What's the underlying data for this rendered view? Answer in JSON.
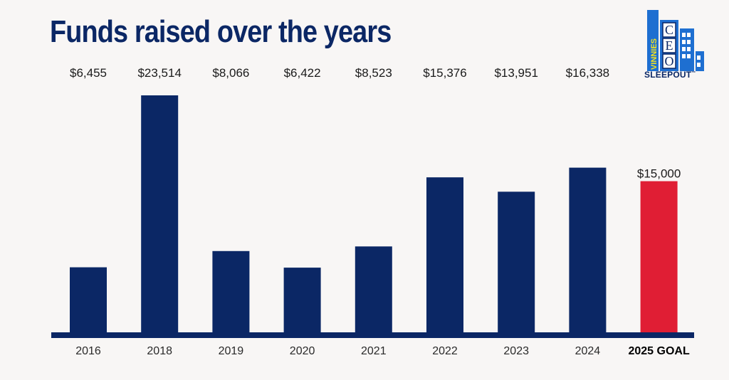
{
  "page": {
    "title": "Funds raised over the years",
    "logo": {
      "vertical_text": "VINNIES",
      "letters": [
        "C",
        "E",
        "O"
      ],
      "wordmark": "SLEEPOUT",
      "trademark": "™"
    }
  },
  "colors": {
    "title": "#0b2765",
    "bar": "#0b2765",
    "goal_bar": "#e01e34",
    "axis": "#0b2765",
    "value_text": "#1a1a1a",
    "tick_text": "#2a2a2a",
    "goal_tick_text": "#000000",
    "logo_blue": "#1e6fd1",
    "logo_yellow": "#f3e220",
    "logo_navy": "#0b2765"
  },
  "chart_data": {
    "type": "bar",
    "title": "Funds raised over the years",
    "xlabel": "",
    "ylabel": "",
    "categories": [
      "2016",
      "2018",
      "2019",
      "2020",
      "2021",
      "2022",
      "2023",
      "2024",
      "2025 GOAL"
    ],
    "values": [
      6455,
      23514,
      8066,
      6422,
      8523,
      15376,
      13951,
      16338,
      15000
    ],
    "value_labels": [
      "$6,455",
      "$23,514",
      "$8,066",
      "$6,422",
      "$8,523",
      "$15,376",
      "$13,951",
      "$16,338",
      "$15,000"
    ],
    "highlight_index": 8,
    "ylim": [
      0,
      23514
    ],
    "grid": false,
    "legend": "none"
  }
}
